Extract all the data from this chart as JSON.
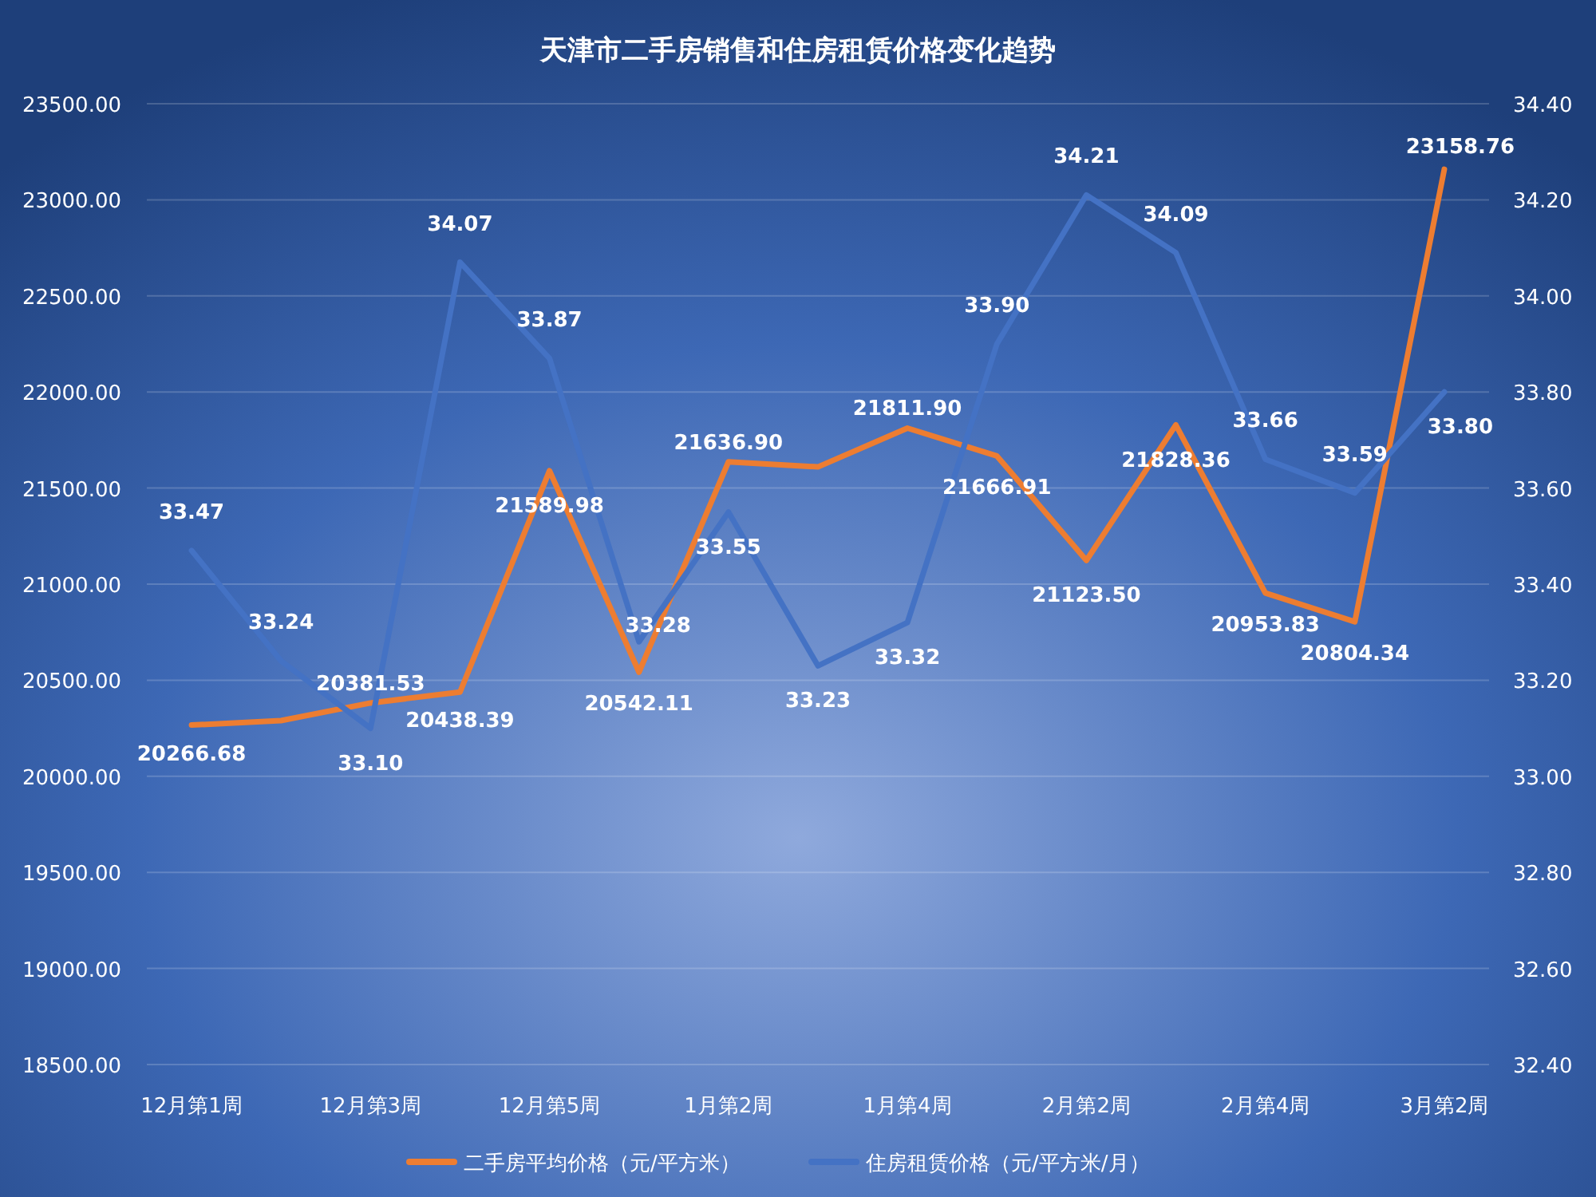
{
  "chart_data": {
    "type": "line",
    "title": "天津市二手房销售和住房租赁价格变化趋势",
    "categories": [
      "12月第1周",
      null,
      "12月第3周",
      null,
      "12月第5周",
      null,
      "1月第2周",
      null,
      "1月第4周",
      null,
      "2月第2周",
      null,
      "2月第4周",
      null,
      "3月第2周"
    ],
    "series": [
      {
        "name": "二手房平均价格（元/平方米）",
        "color": "#ed7d31",
        "values": [
          20266.68,
          20290,
          20381.53,
          20438.39,
          21589.98,
          20542.11,
          21636.9,
          21610,
          21811.9,
          21666.91,
          21123.5,
          21828.36,
          20953.83,
          20804.34,
          23158.76
        ],
        "value_labels": [
          "20266.68",
          null,
          "20381.53",
          "20438.39",
          "21589.98",
          "20542.11",
          "21636.90",
          null,
          "21811.90",
          "21666.91",
          "21123.50",
          "21828.36",
          "20953.83",
          "20804.34",
          "23158.76"
        ]
      },
      {
        "name": "住房租赁价格（元/平方米/月）",
        "color": "#4472c4",
        "axis": "y2",
        "values": [
          33.47,
          33.24,
          33.1,
          34.07,
          33.87,
          33.28,
          33.55,
          33.23,
          33.32,
          33.9,
          34.21,
          34.09,
          33.66,
          33.59,
          33.8
        ],
        "value_labels": [
          "33.47",
          "33.24",
          "33.10",
          "34.07",
          "33.87",
          "33.28",
          "33.55",
          "33.23",
          "33.32",
          "33.90",
          "34.21",
          "34.09",
          "33.66",
          "33.59",
          "33.80"
        ]
      }
    ],
    "ylim": [
      18500,
      23500
    ],
    "yticks": [
      {
        "value": 18500,
        "label": "18500.00"
      },
      {
        "value": 19000,
        "label": "19000.00"
      },
      {
        "value": 19500,
        "label": "19500.00"
      },
      {
        "value": 20000,
        "label": "20000.00"
      },
      {
        "value": 20500,
        "label": "20500.00"
      },
      {
        "value": 21000,
        "label": "21000.00"
      },
      {
        "value": 21500,
        "label": "21500.00"
      },
      {
        "value": 22000,
        "label": "22000.00"
      },
      {
        "value": 22500,
        "label": "22500.00"
      },
      {
        "value": 23000,
        "label": "23000.00"
      },
      {
        "value": 23500,
        "label": "23500.00"
      }
    ],
    "y2lim": [
      32.4,
      34.4
    ],
    "y2ticks": [
      {
        "value": 32.4,
        "label": "32.40"
      },
      {
        "value": 32.6,
        "label": "32.60"
      },
      {
        "value": 32.8,
        "label": "32.80"
      },
      {
        "value": 33,
        "label": "33.00"
      },
      {
        "value": 33.2,
        "label": "33.20"
      },
      {
        "value": 33.4,
        "label": "33.40"
      },
      {
        "value": 33.6,
        "label": "33.60"
      },
      {
        "value": 33.8,
        "label": "33.80"
      },
      {
        "value": 34,
        "label": "34.00"
      },
      {
        "value": 34.2,
        "label": "34.20"
      },
      {
        "value": 34.4,
        "label": "34.40"
      }
    ],
    "grid": "y",
    "legend": "bottom",
    "marker": "none",
    "line_style": "solid"
  }
}
